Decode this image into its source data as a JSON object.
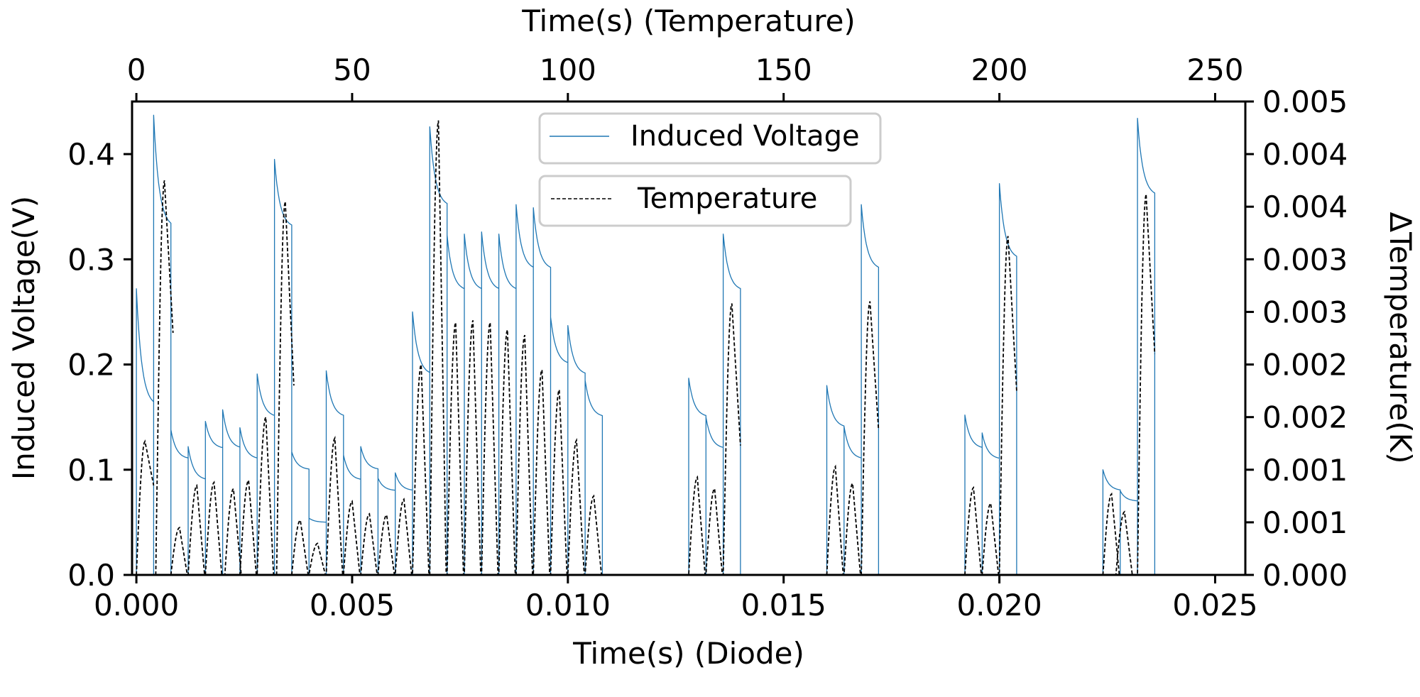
{
  "chart_data": {
    "type": "line",
    "title": "",
    "x_bottom": {
      "label": "Time(s) (Diode)",
      "range": [
        -0.0001,
        0.0257
      ],
      "ticks": [
        0.0,
        0.005,
        0.01,
        0.015,
        0.02,
        0.025
      ],
      "tick_labels": [
        "0.000",
        "0.005",
        "0.010",
        "0.015",
        "0.020",
        "0.025"
      ]
    },
    "x_top": {
      "label": "Time(s) (Temperature)",
      "range": [
        -1,
        257
      ],
      "ticks": [
        0,
        50,
        100,
        150,
        200,
        250
      ],
      "tick_labels": [
        "0",
        "50",
        "100",
        "150",
        "200",
        "250"
      ]
    },
    "y_left": {
      "label": "Induced Voltage(V)",
      "range": [
        0.0,
        0.45
      ],
      "ticks": [
        0.0,
        0.1,
        0.2,
        0.3,
        0.4
      ],
      "tick_labels": [
        "0.0",
        "0.1",
        "0.2",
        "0.3",
        "0.4"
      ]
    },
    "y_right": {
      "label": "ΔTemperature(K)",
      "range": [
        0.0,
        0.0045
      ],
      "ticks": [
        0.0,
        0.0005,
        0.001,
        0.0015,
        0.002,
        0.0025,
        0.003,
        0.0035,
        0.004,
        0.0045
      ],
      "tick_labels": [
        "0.000",
        "0.001",
        "0.001",
        "0.002",
        "0.002",
        "0.003",
        "0.003",
        "0.004",
        "0.004",
        "0.005"
      ]
    },
    "grid": false,
    "series": [
      {
        "name": "Induced Voltage",
        "axis": "bottom-left",
        "color": "#1f77b4",
        "style": "solid",
        "pulses": [
          {
            "t": 0.0,
            "peak": 0.272,
            "tail": 0.16
          },
          {
            "t": 0.0004,
            "peak": 0.437,
            "tail": 0.33
          },
          {
            "t": 0.0008,
            "peak": 0.138,
            "tail": 0.11
          },
          {
            "t": 0.0012,
            "peak": 0.122,
            "tail": 0.09
          },
          {
            "t": 0.0016,
            "peak": 0.146,
            "tail": 0.12
          },
          {
            "t": 0.002,
            "peak": 0.157,
            "tail": 0.12
          },
          {
            "t": 0.0024,
            "peak": 0.14,
            "tail": 0.11
          },
          {
            "t": 0.0028,
            "peak": 0.191,
            "tail": 0.15
          },
          {
            "t": 0.0032,
            "peak": 0.395,
            "tail": 0.33
          },
          {
            "t": 0.0036,
            "peak": 0.117,
            "tail": 0.1
          },
          {
            "t": 0.004,
            "peak": 0.054,
            "tail": 0.05
          },
          {
            "t": 0.0044,
            "peak": 0.194,
            "tail": 0.15
          },
          {
            "t": 0.0048,
            "peak": 0.114,
            "tail": 0.09
          },
          {
            "t": 0.0052,
            "peak": 0.122,
            "tail": 0.1
          },
          {
            "t": 0.0056,
            "peak": 0.092,
            "tail": 0.08
          },
          {
            "t": 0.006,
            "peak": 0.097,
            "tail": 0.08
          },
          {
            "t": 0.0064,
            "peak": 0.25,
            "tail": 0.19
          },
          {
            "t": 0.0068,
            "peak": 0.426,
            "tail": 0.35
          },
          {
            "t": 0.0072,
            "peak": 0.323,
            "tail": 0.27
          },
          {
            "t": 0.0076,
            "peak": 0.324,
            "tail": 0.27
          },
          {
            "t": 0.008,
            "peak": 0.326,
            "tail": 0.27
          },
          {
            "t": 0.0084,
            "peak": 0.324,
            "tail": 0.27
          },
          {
            "t": 0.0088,
            "peak": 0.352,
            "tail": 0.29
          },
          {
            "t": 0.0092,
            "peak": 0.349,
            "tail": 0.29
          },
          {
            "t": 0.0096,
            "peak": 0.245,
            "tail": 0.2
          },
          {
            "t": 0.01,
            "peak": 0.237,
            "tail": 0.19
          },
          {
            "t": 0.0104,
            "peak": 0.185,
            "tail": 0.15
          },
          {
            "t": 0.0128,
            "peak": 0.187,
            "tail": 0.15
          },
          {
            "t": 0.0132,
            "peak": 0.15,
            "tail": 0.12
          },
          {
            "t": 0.0136,
            "peak": 0.324,
            "tail": 0.27
          },
          {
            "t": 0.016,
            "peak": 0.18,
            "tail": 0.14
          },
          {
            "t": 0.0164,
            "peak": 0.141,
            "tail": 0.11
          },
          {
            "t": 0.0168,
            "peak": 0.352,
            "tail": 0.29
          },
          {
            "t": 0.0192,
            "peak": 0.152,
            "tail": 0.12
          },
          {
            "t": 0.0196,
            "peak": 0.135,
            "tail": 0.11
          },
          {
            "t": 0.02,
            "peak": 0.372,
            "tail": 0.3
          },
          {
            "t": 0.0224,
            "peak": 0.1,
            "tail": 0.08
          },
          {
            "t": 0.0228,
            "peak": 0.08,
            "tail": 0.07
          },
          {
            "t": 0.0232,
            "peak": 0.434,
            "tail": 0.36
          }
        ]
      },
      {
        "name": "Temperature",
        "axis": "top-right",
        "color": "#000000",
        "style": "dashed",
        "bumps": [
          {
            "t": 2.0,
            "dT": 0.00127,
            "end": 0.00085
          },
          {
            "t": 6.5,
            "dT": 0.00375,
            "end": 0.0023
          },
          {
            "t": 10.0,
            "dT": 0.00045
          },
          {
            "t": 14.0,
            "dT": 0.00085
          },
          {
            "t": 18.0,
            "dT": 0.00088
          },
          {
            "t": 22.5,
            "dT": 0.00082
          },
          {
            "t": 26.0,
            "dT": 0.0009
          },
          {
            "t": 30.0,
            "dT": 0.0015
          },
          {
            "t": 34.5,
            "dT": 0.00355,
            "end": 0.0018
          },
          {
            "t": 38.0,
            "dT": 0.00052
          },
          {
            "t": 42.0,
            "dT": 0.0003
          },
          {
            "t": 46.0,
            "dT": 0.0013
          },
          {
            "t": 50.0,
            "dT": 0.0007
          },
          {
            "t": 54.0,
            "dT": 0.00058
          },
          {
            "t": 58.0,
            "dT": 0.00057
          },
          {
            "t": 62.0,
            "dT": 0.00072
          },
          {
            "t": 66.0,
            "dT": 0.002
          },
          {
            "t": 70.0,
            "dT": 0.00432
          },
          {
            "t": 74.0,
            "dT": 0.0024
          },
          {
            "t": 78.0,
            "dT": 0.00242
          },
          {
            "t": 82.0,
            "dT": 0.0024
          },
          {
            "t": 86.0,
            "dT": 0.00233
          },
          {
            "t": 90.0,
            "dT": 0.00228
          },
          {
            "t": 94.0,
            "dT": 0.00195
          },
          {
            "t": 98.0,
            "dT": 0.00176
          },
          {
            "t": 102.0,
            "dT": 0.00128
          },
          {
            "t": 106.0,
            "dT": 0.00075
          },
          {
            "t": 130.0,
            "dT": 0.00093
          },
          {
            "t": 134.0,
            "dT": 0.00082
          },
          {
            "t": 138.0,
            "dT": 0.00258,
            "end": 0.00123
          },
          {
            "t": 162.0,
            "dT": 0.00103
          },
          {
            "t": 166.0,
            "dT": 0.00087
          },
          {
            "t": 170.0,
            "dT": 0.0026,
            "end": 0.00138
          },
          {
            "t": 194.0,
            "dT": 0.00083
          },
          {
            "t": 198.0,
            "dT": 0.00068
          },
          {
            "t": 202.0,
            "dT": 0.00322,
            "end": 0.00175
          },
          {
            "t": 226.0,
            "dT": 0.00077
          },
          {
            "t": 229.0,
            "dT": 0.0006
          },
          {
            "t": 234.0,
            "dT": 0.00362,
            "end": 0.0021
          }
        ]
      }
    ],
    "legend": {
      "placement": "top-center",
      "entries": [
        "Induced Voltage",
        "Temperature"
      ]
    }
  }
}
